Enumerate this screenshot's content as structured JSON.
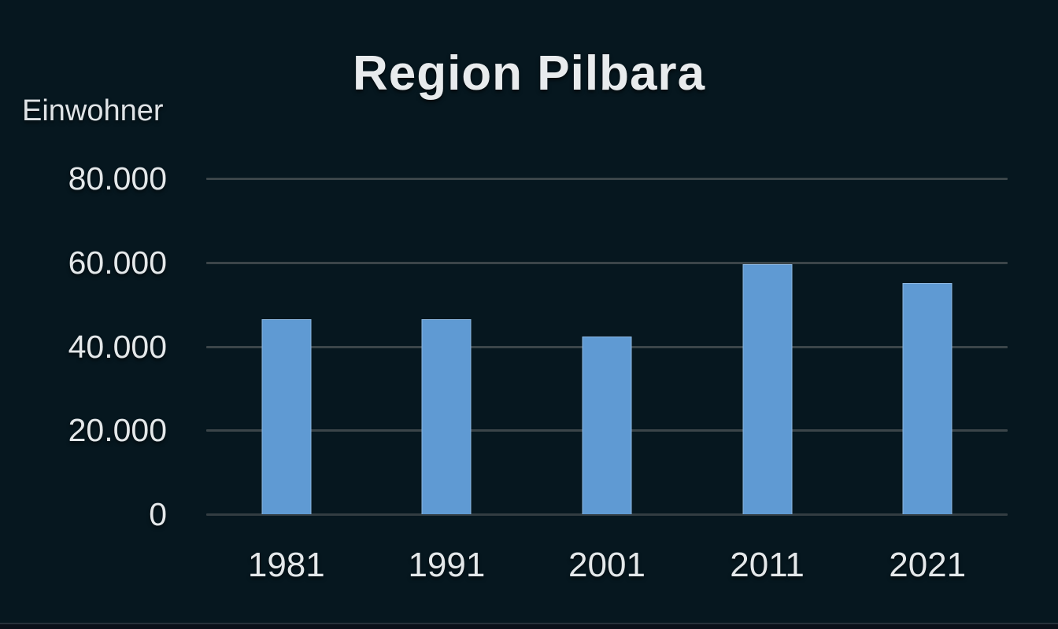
{
  "page": {
    "background_color": "#06171f",
    "footer_strip_color": "#0a1019"
  },
  "chart_data": {
    "type": "bar",
    "title": "Region Pilbara",
    "ylabel": "Einwohner",
    "xlabel": "",
    "categories": [
      "1981",
      "1991",
      "2001",
      "2011",
      "2021"
    ],
    "values": [
      46500,
      46500,
      42400,
      59600,
      55000
    ],
    "ylim": [
      0,
      80000
    ],
    "yticks": [
      0,
      20000,
      40000,
      60000,
      80000
    ],
    "ytick_labels": [
      "0",
      "20.000",
      "40.000",
      "60.000",
      "80.000"
    ],
    "grid": true,
    "legend": "none",
    "colors": {
      "bar": "#5f9ad3",
      "bar_edge": "rgba(198,222,245,0.45)",
      "text": "#e4e8ea",
      "gridline": "#3b4549",
      "axis_line": "#333d42",
      "background": "#06171f"
    }
  }
}
